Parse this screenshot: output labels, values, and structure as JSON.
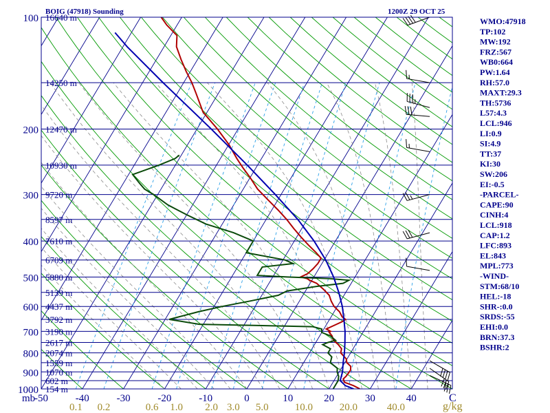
{
  "header": {
    "station": "BOIG (47918) Sounding",
    "time": "1200Z 29 OCT 25"
  },
  "colors": {
    "isobar": "#00008b",
    "isotherm": "#00008b",
    "dry_adiabat": "#009900",
    "moist_adiabat": "#8a8a8a",
    "mixing_ratio": "#2aa0e8",
    "temperature": "#b00000",
    "dewpoint": "#0a4a0a",
    "parcel": "#0000b0",
    "wind": "#000000",
    "mixing_label": "#a08a2a"
  },
  "indices": [
    "WMO:47918",
    "TP:102",
    "MW:192",
    "FRZ:567",
    "WB0:664",
    "PW:1.64",
    "RH:57.0",
    "MAXT:29.3",
    "TH:5736",
    "L57:4.3",
    "LCL:946",
    "LI:0.9",
    "SI:4.9",
    "TT:37",
    "KI:30",
    "SW:206",
    "EI:-0.5",
    "-PARCEL-",
    "CAPE:90",
    "CINH:4",
    "LCL:918",
    "CAP:1.2",
    "LFC:893",
    "EL:843",
    "MPL:773",
    "-WIND-",
    "STM:68/10",
    "HEL:-18",
    "SHR-:0.0",
    "SRDS:-55",
    "EHI:0.0",
    "BRN:37.3",
    "BSHR:2"
  ],
  "chart_data": {
    "type": "line",
    "title": "BOIG (47918) Sounding",
    "subtitle": "1200Z 29 OCT 25",
    "xlabel": "°C",
    "ylabel": "mb",
    "xlim": [
      -50,
      50
    ],
    "ylim": [
      1000,
      100
    ],
    "x_ticks": [
      -50,
      -40,
      -30,
      -20,
      -10,
      0,
      10,
      20,
      30,
      40
    ],
    "x_tick_labels": [
      "-50",
      "-40",
      "-30",
      "-20",
      "-10",
      "0",
      "10",
      "20",
      "30",
      "40"
    ],
    "x_unit_label": "C",
    "y_ticks": [
      100,
      200,
      300,
      400,
      500,
      600,
      700,
      800,
      900,
      1000
    ],
    "y_tick_labels": [
      "100",
      "200",
      "300",
      "400",
      "500",
      "600",
      "700",
      "800",
      "900",
      "1000"
    ],
    "y_axis_title": "mb",
    "height_labels": [
      {
        "p": 100,
        "text": "16640 m"
      },
      {
        "p": 150,
        "text": "14250 m"
      },
      {
        "p": 200,
        "text": "12470 m"
      },
      {
        "p": 250,
        "text": "10930 m"
      },
      {
        "p": 300,
        "text": "9720 m"
      },
      {
        "p": 350,
        "text": "8597 m"
      },
      {
        "p": 400,
        "text": "7610 m"
      },
      {
        "p": 450,
        "text": "6709 m"
      },
      {
        "p": 500,
        "text": "5880 m"
      },
      {
        "p": 550,
        "text": "5139 m"
      },
      {
        "p": 600,
        "text": "4437 m"
      },
      {
        "p": 650,
        "text": "3792 m"
      },
      {
        "p": 700,
        "text": "3190 m"
      },
      {
        "p": 750,
        "text": "2617 m"
      },
      {
        "p": 800,
        "text": "2074 m"
      },
      {
        "p": 850,
        "text": "1559 m"
      },
      {
        "p": 900,
        "text": "1070 m"
      },
      {
        "p": 950,
        "text": "602 m"
      },
      {
        "p": 1000,
        "text": "154 m"
      }
    ],
    "mixing_ratio_labels": [
      "0.1",
      "0.2",
      "0.6",
      "1.0",
      "2.0",
      "3.0",
      "5.0",
      "10.0",
      "20.0",
      "40.0"
    ],
    "mixing_ratio_unit": "g/kg",
    "series": [
      {
        "name": "Temperature",
        "points": [
          [
            1000,
            27.5
          ],
          [
            980,
            25.5
          ],
          [
            960,
            22.8
          ],
          [
            940,
            22.0
          ],
          [
            925,
            22.3
          ],
          [
            910,
            22.4
          ],
          [
            890,
            22.5
          ],
          [
            870,
            22.0
          ],
          [
            850,
            20.5
          ],
          [
            830,
            19.8
          ],
          [
            800,
            17.6
          ],
          [
            780,
            17.2
          ],
          [
            760,
            15.8
          ],
          [
            740,
            14.0
          ],
          [
            720,
            13.0
          ],
          [
            703,
            11.7
          ],
          [
            700,
            12.0
          ],
          [
            690,
            10.6
          ],
          [
            670,
            12.4
          ],
          [
            660,
            13.3
          ],
          [
            650,
            13.9
          ],
          [
            640,
            12.7
          ],
          [
            620,
            11.3
          ],
          [
            600,
            9.2
          ],
          [
            580,
            7.7
          ],
          [
            560,
            6.4
          ],
          [
            540,
            4.2
          ],
          [
            520,
            1.6
          ],
          [
            510,
            -0.6
          ],
          [
            505,
            -1.4
          ],
          [
            500,
            -3.2
          ],
          [
            490,
            -2.0
          ],
          [
            475,
            -1.4
          ],
          [
            460,
            -1.0
          ],
          [
            445,
            -1.0
          ],
          [
            430,
            -3.0
          ],
          [
            410,
            -6.0
          ],
          [
            390,
            -9.0
          ],
          [
            370,
            -12.0
          ],
          [
            350,
            -15.0
          ],
          [
            330,
            -18.5
          ],
          [
            310,
            -22.4
          ],
          [
            290,
            -26.5
          ],
          [
            270,
            -30.0
          ],
          [
            255,
            -33.0
          ],
          [
            240,
            -36.0
          ],
          [
            220,
            -40.0
          ],
          [
            200,
            -45.0
          ],
          [
            180,
            -51.0
          ],
          [
            160,
            -55.5
          ],
          [
            150,
            -58.0
          ],
          [
            140,
            -61.0
          ],
          [
            130,
            -64.0
          ],
          [
            120,
            -67.0
          ],
          [
            112,
            -68.5
          ],
          [
            105,
            -72.5
          ],
          [
            100,
            -75.0
          ]
        ]
      },
      {
        "name": "Dewpoint",
        "points": [
          [
            1000,
            21.0
          ],
          [
            950,
            21.0
          ],
          [
            925,
            20.5
          ],
          [
            900,
            19.5
          ],
          [
            880,
            19.0
          ],
          [
            850,
            16.5
          ],
          [
            820,
            16.0
          ],
          [
            800,
            14.5
          ],
          [
            780,
            14.5
          ],
          [
            760,
            12.0
          ],
          [
            750,
            13.0
          ],
          [
            740,
            14.5
          ],
          [
            720,
            12.6
          ],
          [
            705,
            10.0
          ],
          [
            690,
            9.5
          ],
          [
            680,
            7.0
          ],
          [
            670,
            -21.0
          ],
          [
            650,
            -29.0
          ],
          [
            620,
            -23.0
          ],
          [
            600,
            -18.0
          ],
          [
            580,
            -12.0
          ],
          [
            560,
            -6.0
          ],
          [
            545,
            -4.5
          ],
          [
            530,
            2.0
          ],
          [
            520,
            8.0
          ],
          [
            510,
            9.0
          ],
          [
            505,
            4.0
          ],
          [
            500,
            -6.5
          ],
          [
            495,
            -14.0
          ],
          [
            470,
            -14.0
          ],
          [
            460,
            -7.0
          ],
          [
            450,
            -9.5
          ],
          [
            430,
            -20.0
          ],
          [
            420,
            -20.0
          ],
          [
            400,
            -20.0
          ],
          [
            380,
            -26.0
          ],
          [
            360,
            -34.0
          ],
          [
            340,
            -40.0
          ],
          [
            320,
            -46.0
          ],
          [
            300,
            -51.0
          ],
          [
            290,
            -54.0
          ],
          [
            280,
            -56.0
          ],
          [
            265,
            -59.0
          ],
          [
            250,
            -54.0
          ],
          [
            240,
            -51.0
          ],
          [
            235,
            -50.5
          ]
        ]
      },
      {
        "name": "Parcel",
        "points": [
          [
            1000,
            26.0
          ],
          [
            980,
            23.5
          ],
          [
            950,
            21.5
          ],
          [
            900,
            20.8
          ],
          [
            850,
            19.6
          ],
          [
            800,
            18.5
          ],
          [
            750,
            17.1
          ],
          [
            700,
            15.5
          ],
          [
            650,
            13.5
          ],
          [
            600,
            11.2
          ],
          [
            550,
            8.3
          ],
          [
            500,
            4.8
          ],
          [
            450,
            0.4
          ],
          [
            400,
            -5.2
          ],
          [
            350,
            -12.3
          ],
          [
            300,
            -21.4
          ],
          [
            250,
            -32.5
          ],
          [
            200,
            -46.5
          ],
          [
            150,
            -65.0
          ],
          [
            120,
            -79.0
          ],
          [
            110,
            -84.0
          ]
        ]
      }
    ],
    "wind_barbs": [
      {
        "p": 100,
        "dir": 250,
        "kt": 40
      },
      {
        "p": 150,
        "dir": 280,
        "kt": 15
      },
      {
        "p": 175,
        "dir": 285,
        "kt": 35
      },
      {
        "p": 185,
        "dir": 275,
        "kt": 30
      },
      {
        "p": 230,
        "dir": 280,
        "kt": 15
      },
      {
        "p": 300,
        "dir": 255,
        "kt": 25
      },
      {
        "p": 380,
        "dir": 255,
        "kt": 30
      },
      {
        "p": 480,
        "dir": 280,
        "kt": 10
      },
      {
        "p": 840,
        "dir": 120,
        "kt": 40
      },
      {
        "p": 880,
        "dir": 125,
        "kt": 30
      },
      {
        "p": 920,
        "dir": 115,
        "kt": 30
      }
    ]
  }
}
